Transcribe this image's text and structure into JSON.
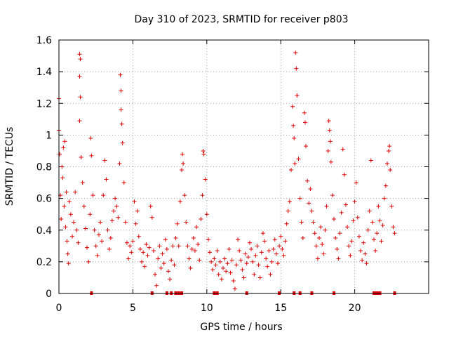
{
  "chart_data": {
    "type": "scatter",
    "title": "Day 310 of 2023, SRMTID for receiver p803",
    "xlabel": "GPS time / hours",
    "ylabel": "SRMTID / TECUs",
    "xlim": [
      0,
      25
    ],
    "ylim": [
      0,
      1.6
    ],
    "xticks": [
      0,
      5,
      10,
      15,
      20
    ],
    "xtick_labels": [
      "0",
      "5",
      "10",
      "15",
      "20"
    ],
    "yticks": [
      0,
      0.2,
      0.4,
      0.6,
      0.8,
      1.0,
      1.2,
      1.4,
      1.6
    ],
    "ytick_labels": [
      "0",
      "0.2",
      "0.4",
      "0.6",
      "0.8",
      "1",
      "1.2",
      "1.4",
      "1.6"
    ],
    "grid": true,
    "color": "#dd0000",
    "marker": "plus",
    "series": [
      {
        "name": "SRMTID",
        "points": [
          [
            0.0,
            1.23
          ],
          [
            0.0,
            1.03
          ],
          [
            0.05,
            0.88
          ],
          [
            0.1,
            0.62
          ],
          [
            0.15,
            0.47
          ],
          [
            0.2,
            0.8
          ],
          [
            0.25,
            0.73
          ],
          [
            0.3,
            0.92
          ],
          [
            0.35,
            0.55
          ],
          [
            0.4,
            0.96
          ],
          [
            0.45,
            0.42
          ],
          [
            0.5,
            0.64
          ],
          [
            0.55,
            0.33
          ],
          [
            0.6,
            0.25
          ],
          [
            0.65,
            0.19
          ],
          [
            0.7,
            0.58
          ],
          [
            0.8,
            0.5
          ],
          [
            0.9,
            0.36
          ],
          [
            1.0,
            0.45
          ],
          [
            1.1,
            0.64
          ],
          [
            1.2,
            0.4
          ],
          [
            1.3,
            0.32
          ],
          [
            1.4,
            1.51
          ],
          [
            1.45,
            1.48
          ],
          [
            1.4,
            1.37
          ],
          [
            1.45,
            1.24
          ],
          [
            1.4,
            1.09
          ],
          [
            1.5,
            0.86
          ],
          [
            1.6,
            0.7
          ],
          [
            1.7,
            0.55
          ],
          [
            1.8,
            0.41
          ],
          [
            1.9,
            0.29
          ],
          [
            2.0,
            0.2
          ],
          [
            2.1,
            0.5
          ],
          [
            2.15,
            0.98
          ],
          [
            2.2,
            0.87
          ],
          [
            2.3,
            0.62
          ],
          [
            2.4,
            0.4
          ],
          [
            2.5,
            0.3
          ],
          [
            2.6,
            0.24
          ],
          [
            2.7,
            0.37
          ],
          [
            2.8,
            0.45
          ],
          [
            2.9,
            0.33
          ],
          [
            3.0,
            0.62
          ],
          [
            3.1,
            0.84
          ],
          [
            3.2,
            0.72
          ],
          [
            3.3,
            0.4
          ],
          [
            3.4,
            0.28
          ],
          [
            3.5,
            0.35
          ],
          [
            3.6,
            0.46
          ],
          [
            3.7,
            0.52
          ],
          [
            3.8,
            0.6
          ],
          [
            3.9,
            0.55
          ],
          [
            4.0,
            0.48
          ],
          [
            4.1,
            0.82
          ],
          [
            4.15,
            1.38
          ],
          [
            4.2,
            1.28
          ],
          [
            4.2,
            1.16
          ],
          [
            4.25,
            1.07
          ],
          [
            4.3,
            0.95
          ],
          [
            4.4,
            0.7
          ],
          [
            4.5,
            0.45
          ],
          [
            4.6,
            0.32
          ],
          [
            4.7,
            0.22
          ],
          [
            4.8,
            0.3
          ],
          [
            4.9,
            0.26
          ],
          [
            5.0,
            0.33
          ],
          [
            5.1,
            0.58
          ],
          [
            5.2,
            0.44
          ],
          [
            5.3,
            0.52
          ],
          [
            5.4,
            0.36
          ],
          [
            5.5,
            0.28
          ],
          [
            5.6,
            0.2
          ],
          [
            5.7,
            0.26
          ],
          [
            5.8,
            0.17
          ],
          [
            5.9,
            0.31
          ],
          [
            6.0,
            0.24
          ],
          [
            6.1,
            0.29
          ],
          [
            6.2,
            0.55
          ],
          [
            6.3,
            0.48
          ],
          [
            6.4,
            0.27
          ],
          [
            6.5,
            0.12
          ],
          [
            6.6,
            0.05
          ],
          [
            6.7,
            0.22
          ],
          [
            6.8,
            0.3
          ],
          [
            6.9,
            0.16
          ],
          [
            7.0,
            0.25
          ],
          [
            7.1,
            0.19
          ],
          [
            7.2,
            0.34
          ],
          [
            7.3,
            0.28
          ],
          [
            7.4,
            0.14
          ],
          [
            7.5,
            0.09
          ],
          [
            7.6,
            0.21
          ],
          [
            7.7,
            0.3
          ],
          [
            7.8,
            0.18
          ],
          [
            7.9,
            0.35
          ],
          [
            8.0,
            0.44
          ],
          [
            8.1,
            0.3
          ],
          [
            8.2,
            0.58
          ],
          [
            8.3,
            0.78
          ],
          [
            8.35,
            0.88
          ],
          [
            8.4,
            0.82
          ],
          [
            8.5,
            0.62
          ],
          [
            8.6,
            0.45
          ],
          [
            8.7,
            0.3
          ],
          [
            8.8,
            0.22
          ],
          [
            8.9,
            0.16
          ],
          [
            9.0,
            0.28
          ],
          [
            9.1,
            0.35
          ],
          [
            9.2,
            0.27
          ],
          [
            9.3,
            0.42
          ],
          [
            9.4,
            0.31
          ],
          [
            9.5,
            0.21
          ],
          [
            9.6,
            0.47
          ],
          [
            9.7,
            0.62
          ],
          [
            9.75,
            0.9
          ],
          [
            9.8,
            0.88
          ],
          [
            9.9,
            0.72
          ],
          [
            10.0,
            0.5
          ],
          [
            10.1,
            0.34
          ],
          [
            10.2,
            0.26
          ],
          [
            10.3,
            0.2
          ],
          [
            10.4,
            0.15
          ],
          [
            10.5,
            0.22
          ],
          [
            10.6,
            0.18
          ],
          [
            10.7,
            0.27
          ],
          [
            10.8,
            0.12
          ],
          [
            10.9,
            0.2
          ],
          [
            11.0,
            0.09
          ],
          [
            11.1,
            0.16
          ],
          [
            11.2,
            0.22
          ],
          [
            11.3,
            0.14
          ],
          [
            11.4,
            0.19
          ],
          [
            11.5,
            0.28
          ],
          [
            11.6,
            0.13
          ],
          [
            11.7,
            0.21
          ],
          [
            11.8,
            0.08
          ],
          [
            11.9,
            0.03
          ],
          [
            12.0,
            0.18
          ],
          [
            12.1,
            0.34
          ],
          [
            12.2,
            0.27
          ],
          [
            12.3,
            0.21
          ],
          [
            12.4,
            0.15
          ],
          [
            12.5,
            0.1
          ],
          [
            12.6,
            0.25
          ],
          [
            12.7,
            0.19
          ],
          [
            12.8,
            0.23
          ],
          [
            12.9,
            0.32
          ],
          [
            13.0,
            0.28
          ],
          [
            13.1,
            0.2
          ],
          [
            13.2,
            0.12
          ],
          [
            13.3,
            0.24
          ],
          [
            13.4,
            0.3
          ],
          [
            13.5,
            0.18
          ],
          [
            13.6,
            0.1
          ],
          [
            13.7,
            0.26
          ],
          [
            13.8,
            0.38
          ],
          [
            13.9,
            0.33
          ],
          [
            14.0,
            0.22
          ],
          [
            14.1,
            0.17
          ],
          [
            14.2,
            0.27
          ],
          [
            14.3,
            0.12
          ],
          [
            14.4,
            0.2
          ],
          [
            14.5,
            0.28
          ],
          [
            14.6,
            0.34
          ],
          [
            14.7,
            0.25
          ],
          [
            14.8,
            0.19
          ],
          [
            14.9,
            0.3
          ],
          [
            15.0,
            0.36
          ],
          [
            15.1,
            0.28
          ],
          [
            15.2,
            0.24
          ],
          [
            15.3,
            0.33
          ],
          [
            15.4,
            0.44
          ],
          [
            15.5,
            0.52
          ],
          [
            15.6,
            0.58
          ],
          [
            15.7,
            0.78
          ],
          [
            15.8,
            1.18
          ],
          [
            15.85,
            1.06
          ],
          [
            15.9,
            0.98
          ],
          [
            15.95,
            0.82
          ],
          [
            16.0,
            1.52
          ],
          [
            16.05,
            1.42
          ],
          [
            16.1,
            1.25
          ],
          [
            16.2,
            0.85
          ],
          [
            16.3,
            0.6
          ],
          [
            16.4,
            0.45
          ],
          [
            16.5,
            0.35
          ],
          [
            16.6,
            1.14
          ],
          [
            16.65,
            1.08
          ],
          [
            16.7,
            0.93
          ],
          [
            16.8,
            0.71
          ],
          [
            16.9,
            0.57
          ],
          [
            17.0,
            0.66
          ],
          [
            17.1,
            0.52
          ],
          [
            17.2,
            0.45
          ],
          [
            17.3,
            0.38
          ],
          [
            17.4,
            0.3
          ],
          [
            17.5,
            0.22
          ],
          [
            17.6,
            0.35
          ],
          [
            17.7,
            0.42
          ],
          [
            17.8,
            0.31
          ],
          [
            17.9,
            0.25
          ],
          [
            18.0,
            0.4
          ],
          [
            18.1,
            0.55
          ],
          [
            18.2,
            0.9
          ],
          [
            18.25,
            1.09
          ],
          [
            18.3,
            1.03
          ],
          [
            18.35,
            0.96
          ],
          [
            18.4,
            0.83
          ],
          [
            18.5,
            0.62
          ],
          [
            18.6,
            0.47
          ],
          [
            18.7,
            0.35
          ],
          [
            18.8,
            0.28
          ],
          [
            18.9,
            0.22
          ],
          [
            19.0,
            0.38
          ],
          [
            19.1,
            0.51
          ],
          [
            19.2,
            0.91
          ],
          [
            19.3,
            0.75
          ],
          [
            19.4,
            0.56
          ],
          [
            19.5,
            0.42
          ],
          [
            19.6,
            0.3
          ],
          [
            19.7,
            0.24
          ],
          [
            19.8,
            0.33
          ],
          [
            19.9,
            0.46
          ],
          [
            20.0,
            0.58
          ],
          [
            20.1,
            0.7
          ],
          [
            20.2,
            0.48
          ],
          [
            20.3,
            0.36
          ],
          [
            20.4,
            0.27
          ],
          [
            20.5,
            0.21
          ],
          [
            20.6,
            0.32
          ],
          [
            20.7,
            0.25
          ],
          [
            20.8,
            0.19
          ],
          [
            20.9,
            0.4
          ],
          [
            21.0,
            0.52
          ],
          [
            21.1,
            0.84
          ],
          [
            21.2,
            0.45
          ],
          [
            21.3,
            0.34
          ],
          [
            21.4,
            0.27
          ],
          [
            21.5,
            0.38
          ],
          [
            21.6,
            0.55
          ],
          [
            21.7,
            0.46
          ],
          [
            21.8,
            0.33
          ],
          [
            21.9,
            0.43
          ],
          [
            22.0,
            0.6
          ],
          [
            22.1,
            0.68
          ],
          [
            22.2,
            0.82
          ],
          [
            22.3,
            0.9
          ],
          [
            22.35,
            0.93
          ],
          [
            22.4,
            0.78
          ],
          [
            22.5,
            0.55
          ],
          [
            22.6,
            0.42
          ],
          [
            22.7,
            0.38
          ]
        ]
      }
    ],
    "gap_markers_x": [
      2.2,
      6.3,
      7.3,
      7.6,
      7.9,
      8.1,
      8.3,
      10.5,
      10.7,
      12.7,
      14.9,
      15.9,
      16.3,
      17.1,
      18.6,
      21.3,
      21.4,
      21.5,
      21.6,
      21.7,
      22.7
    ]
  }
}
